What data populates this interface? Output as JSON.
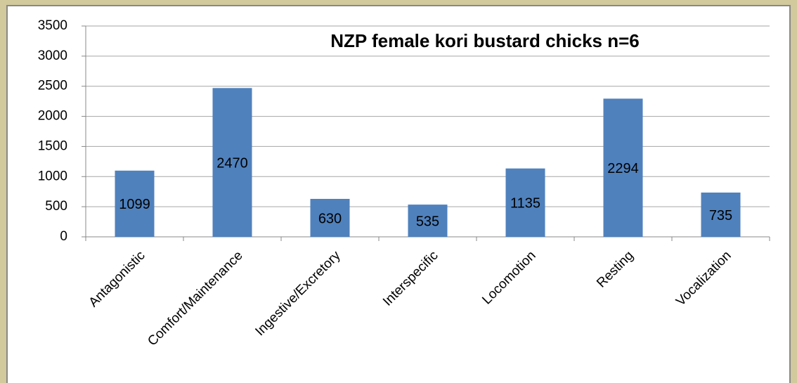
{
  "chart_data": {
    "type": "bar",
    "title": "NZP female kori bustard chicks n=6",
    "categories": [
      "Antagonistic",
      "Comfort/Maintenance",
      "Ingestive/Excretory",
      "Interspecific",
      "Locomotion",
      "Resting",
      "Vocalization"
    ],
    "values": [
      1099,
      2470,
      630,
      535,
      1135,
      2294,
      735
    ],
    "color": "#4f81bd",
    "ylim": [
      0,
      3500
    ],
    "yticks": [
      0,
      500,
      1000,
      1500,
      2000,
      2500,
      3000,
      3500
    ],
    "grid": true
  }
}
